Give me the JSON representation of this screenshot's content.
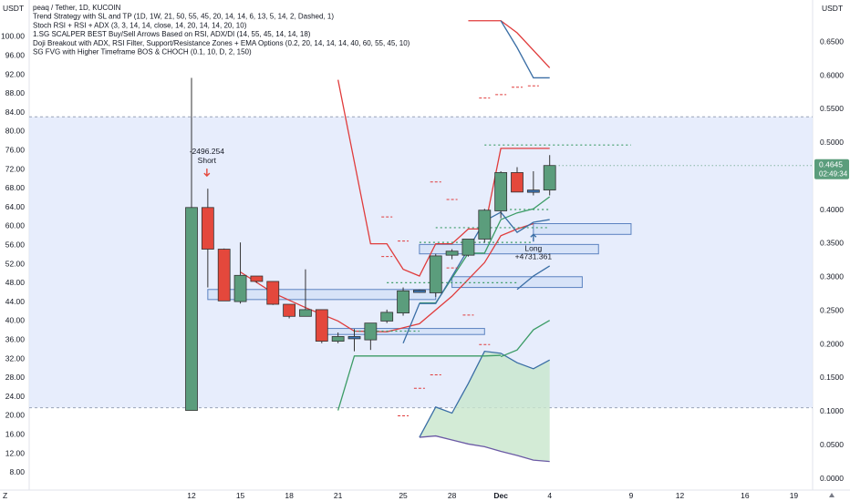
{
  "header": {
    "left_axis_unit": "USDT",
    "right_axis_unit": "USDT",
    "indicators": [
      "peaq / Tether, 1D, KUCOIN",
      "Trend Strategy with SL and TP (1D, 1W, 21, 50, 55, 45, 20, 14, 14, 6, 13, 5, 14, 2, Dashed, 1)",
      "Stoch RSI + RSI + ADX (3, 3, 14, 14, close, 14, 20, 14, 14, 20, 10)",
      "1.SG SCALPER BEST Buy/Sell Arrows Based on RSI, ADX/DI (14, 55, 45, 14, 14, 18)",
      "Doji Breakout with ADX, RSI Filter, Support/Resistance Zones + EMA Options (0.2, 20, 14, 14, 14, 40, 60, 55, 45, 10)",
      "SG FVG with Higher Timeframe BOS & CHOCH (0.1, 10, D, 2, 150)"
    ]
  },
  "footer": {
    "left_icon_label": "Z"
  },
  "colors": {
    "up": "#5b9d7c",
    "down": "#e4483c",
    "doji": "#3a74b4",
    "zone_fill": "#dfe7fb",
    "trail_red": "#e03b3b",
    "trail_green": "#3c9c66",
    "trail_blue": "#3a6ea5",
    "fvg_fill": "#c8e6cc"
  },
  "chart_data": {
    "type": "candlestick",
    "left_axis": {
      "range": [
        6,
        106
      ],
      "ticks": [
        "8.00",
        "12.00",
        "16.00",
        "20.00",
        "24.00",
        "28.00",
        "32.00",
        "36.00",
        "40.00",
        "44.00",
        "48.00",
        "52.00",
        "56.00",
        "60.00",
        "64.00",
        "68.00",
        "72.00",
        "76.00",
        "80.00",
        "84.00",
        "88.00",
        "92.00",
        "96.00",
        "100.00"
      ]
    },
    "right_axis": {
      "range": [
        -0.005,
        0.7
      ],
      "ticks": [
        "0.0000",
        "0.0500",
        "0.1000",
        "0.1500",
        "0.2000",
        "0.2500",
        "0.3000",
        "0.3500",
        "0.4000",
        "0.4500",
        "0.5000",
        "0.5500",
        "0.6000",
        "0.6500"
      ]
    },
    "x_ticks": [
      {
        "label": "12",
        "day": 12
      },
      {
        "label": "15",
        "day": 15
      },
      {
        "label": "18",
        "day": 18
      },
      {
        "label": "21",
        "day": 21
      },
      {
        "label": "25",
        "day": 25
      },
      {
        "label": "28",
        "day": 28
      },
      {
        "label": "Dec",
        "day": 31
      },
      {
        "label": "4",
        "day": 34
      },
      {
        "label": "9",
        "day": 39
      },
      {
        "label": "12",
        "day": 42
      },
      {
        "label": "16",
        "day": 46
      },
      {
        "label": "19",
        "day": 49
      }
    ],
    "candles": [
      {
        "day": 12,
        "open": 0.1,
        "high": 0.595,
        "low": 0.1,
        "close": 0.402
      },
      {
        "day": 13,
        "open": 0.402,
        "high": 0.43,
        "low": 0.283,
        "close": 0.34
      },
      {
        "day": 14,
        "open": 0.34,
        "high": 0.341,
        "low": 0.263,
        "close": 0.263
      },
      {
        "day": 15,
        "open": 0.262,
        "high": 0.35,
        "low": 0.259,
        "close": 0.301
      },
      {
        "day": 16,
        "open": 0.3,
        "high": 0.3,
        "low": 0.29,
        "close": 0.292
      },
      {
        "day": 17,
        "open": 0.292,
        "high": 0.292,
        "low": 0.257,
        "close": 0.258
      },
      {
        "day": 18,
        "open": 0.258,
        "high": 0.258,
        "low": 0.237,
        "close": 0.24
      },
      {
        "day": 19,
        "open": 0.24,
        "high": 0.31,
        "low": 0.24,
        "close": 0.25
      },
      {
        "day": 20,
        "open": 0.25,
        "high": 0.25,
        "low": 0.2,
        "close": 0.203
      },
      {
        "day": 21,
        "open": 0.203,
        "high": 0.216,
        "low": 0.2,
        "close": 0.21
      },
      {
        "day": 22,
        "open": 0.209,
        "high": 0.221,
        "low": 0.188,
        "close": 0.21
      },
      {
        "day": 23,
        "open": 0.205,
        "high": 0.228,
        "low": 0.19,
        "close": 0.23
      },
      {
        "day": 24,
        "open": 0.233,
        "high": 0.25,
        "low": 0.23,
        "close": 0.246
      },
      {
        "day": 25,
        "open": 0.245,
        "high": 0.283,
        "low": 0.241,
        "close": 0.278
      },
      {
        "day": 26,
        "open": 0.278,
        "high": 0.28,
        "low": 0.275,
        "close": 0.279
      },
      {
        "day": 27,
        "open": 0.275,
        "high": 0.333,
        "low": 0.269,
        "close": 0.33
      },
      {
        "day": 28,
        "open": 0.331,
        "high": 0.34,
        "low": 0.325,
        "close": 0.337
      },
      {
        "day": 29,
        "open": 0.331,
        "high": 0.355,
        "low": 0.329,
        "close": 0.355
      },
      {
        "day": 30,
        "open": 0.355,
        "high": 0.4,
        "low": 0.35,
        "close": 0.398
      },
      {
        "day": 31,
        "open": 0.397,
        "high": 0.456,
        "low": 0.386,
        "close": 0.454
      },
      {
        "day": 32,
        "open": 0.454,
        "high": 0.462,
        "low": 0.425,
        "close": 0.425
      },
      {
        "day": 33,
        "open": 0.428,
        "high": 0.456,
        "low": 0.42,
        "close": 0.428
      },
      {
        "day": 34,
        "open": 0.428,
        "high": 0.48,
        "low": 0.42,
        "close": 0.4645
      }
    ],
    "zones": [
      {
        "name": "range-zone",
        "from_day": 9,
        "to_day": 50,
        "top": 0.537,
        "bottom": 0.104
      },
      {
        "name": "resistance-zone-1",
        "from_day": 13,
        "to_day": 27,
        "top": 0.28,
        "bottom": 0.265
      },
      {
        "name": "resistance-zone-2",
        "from_day": 20,
        "to_day": 30,
        "top": 0.222,
        "bottom": 0.213
      },
      {
        "name": "support-zone-1",
        "from_day": 33,
        "to_day": 39,
        "top": 0.378,
        "bottom": 0.362
      },
      {
        "name": "support-zone-2",
        "from_day": 26,
        "to_day": 37,
        "top": 0.347,
        "bottom": 0.333
      },
      {
        "name": "support-zone-3",
        "from_day": 28,
        "to_day": 36,
        "top": 0.299,
        "bottom": 0.283
      }
    ],
    "trailing_stops": [
      {
        "name": "red-trail",
        "points": [
          [
            21,
            0.592
          ],
          [
            23,
            0.348
          ],
          [
            24,
            0.348
          ],
          [
            25,
            0.31
          ],
          [
            26,
            0.3
          ],
          [
            27,
            0.348
          ],
          [
            28,
            0.348
          ],
          [
            29,
            0.37
          ],
          [
            30,
            0.37
          ],
          [
            31,
            0.49
          ],
          [
            34,
            0.49
          ]
        ]
      },
      {
        "name": "red-trail-upper",
        "points": [
          [
            29,
            0.68
          ],
          [
            31,
            0.68
          ],
          [
            32,
            0.662
          ],
          [
            34,
            0.61
          ]
        ]
      },
      {
        "name": "red-ma",
        "points": [
          [
            15,
            0.306
          ],
          [
            17,
            0.275
          ],
          [
            19,
            0.253
          ],
          [
            21,
            0.233
          ],
          [
            22,
            0.218
          ],
          [
            24,
            0.217
          ],
          [
            26,
            0.229
          ],
          [
            28,
            0.27
          ],
          [
            30,
            0.32
          ],
          [
            31,
            0.36
          ],
          [
            32,
            0.37
          ],
          [
            33,
            0.378
          ]
        ]
      },
      {
        "name": "green-trail",
        "points": [
          [
            21,
            0.1
          ],
          [
            22,
            0.181
          ],
          [
            30,
            0.181
          ],
          [
            31,
            0.182
          ]
        ]
      },
      {
        "name": "green-trail-2",
        "points": [
          [
            26,
            0.26
          ],
          [
            27,
            0.26
          ],
          [
            29,
            0.334
          ],
          [
            30,
            0.334
          ],
          [
            31,
            0.384
          ],
          [
            32,
            0.394
          ],
          [
            33,
            0.4
          ],
          [
            34,
            0.418
          ]
        ]
      },
      {
        "name": "blue-trail",
        "points": [
          [
            25,
            0.2
          ],
          [
            26,
            0.259
          ],
          [
            27,
            0.259
          ],
          [
            29,
            0.34
          ],
          [
            30,
            0.382
          ],
          [
            31,
            0.395
          ],
          [
            32,
            0.365
          ],
          [
            33,
            0.38
          ],
          [
            34,
            0.384
          ]
        ]
      },
      {
        "name": "blue-trail-upper",
        "points": [
          [
            31,
            0.68
          ],
          [
            32,
            0.64
          ],
          [
            33,
            0.595
          ],
          [
            34,
            0.595
          ]
        ]
      },
      {
        "name": "blue-trail-lower",
        "points": [
          [
            32,
            0.28
          ],
          [
            33,
            0.3
          ],
          [
            34,
            0.315
          ]
        ]
      },
      {
        "name": "green-trail-lower",
        "points": [
          [
            31,
            0.18
          ],
          [
            32,
            0.19
          ],
          [
            33,
            0.22
          ],
          [
            34,
            0.234
          ]
        ]
      }
    ],
    "fvg_cloud": {
      "upper": [
        [
          26,
          0.06
        ],
        [
          27,
          0.105
        ],
        [
          28,
          0.096
        ],
        [
          29,
          0.14
        ],
        [
          30,
          0.188
        ],
        [
          31,
          0.185
        ],
        [
          32,
          0.171
        ],
        [
          33,
          0.162
        ],
        [
          34,
          0.175
        ]
      ],
      "lower": [
        [
          26,
          0.06
        ],
        [
          27,
          0.062
        ],
        [
          28,
          0.056
        ],
        [
          29,
          0.05
        ],
        [
          30,
          0.046
        ],
        [
          31,
          0.039
        ],
        [
          32,
          0.033
        ],
        [
          33,
          0.026
        ],
        [
          34,
          0.024
        ]
      ]
    },
    "dotted_levels": [
      {
        "from_day": 30,
        "to_day": 39,
        "price": 0.495,
        "color": "#3c9c66"
      },
      {
        "from_day": 31,
        "to_day": 34,
        "price": 0.399,
        "color": "#3c9c66"
      },
      {
        "from_day": 27,
        "to_day": 34,
        "price": 0.372,
        "color": "#3c9c66"
      },
      {
        "from_day": 26,
        "to_day": 33,
        "price": 0.35,
        "color": "#3c9c66"
      },
      {
        "from_day": 24,
        "to_day": 32,
        "price": 0.29,
        "color": "#3c9c66"
      },
      {
        "from_day": 22,
        "to_day": 26,
        "price": 0.218,
        "color": "#3c9c66"
      }
    ],
    "dashed_ticks": [
      {
        "day": 24,
        "price": 0.388
      },
      {
        "day": 24,
        "price": 0.329
      },
      {
        "day": 25,
        "price": 0.352
      },
      {
        "day": 25,
        "price": 0.092
      },
      {
        "day": 26,
        "price": 0.133
      },
      {
        "day": 27,
        "price": 0.153
      },
      {
        "day": 27,
        "price": 0.44
      },
      {
        "day": 28,
        "price": 0.414
      },
      {
        "day": 28,
        "price": 0.312
      },
      {
        "day": 29,
        "price": 0.242
      },
      {
        "day": 30,
        "price": 0.198
      },
      {
        "day": 30,
        "price": 0.565
      },
      {
        "day": 31,
        "price": 0.57
      },
      {
        "day": 32,
        "price": 0.581
      },
      {
        "day": 33,
        "price": 0.583
      }
    ],
    "signals": [
      {
        "label": "Short",
        "value_label": "-2496.254",
        "day": 13,
        "price": 0.43,
        "direction": "down"
      },
      {
        "label": "Long",
        "value_label": "+4731.361",
        "day": 33,
        "price": 0.362,
        "direction": "up"
      }
    ],
    "price_tag": {
      "price": "0.4645",
      "countdown": "02:49:34",
      "value": 0.4645
    },
    "grid": false,
    "legend": "top-left"
  }
}
